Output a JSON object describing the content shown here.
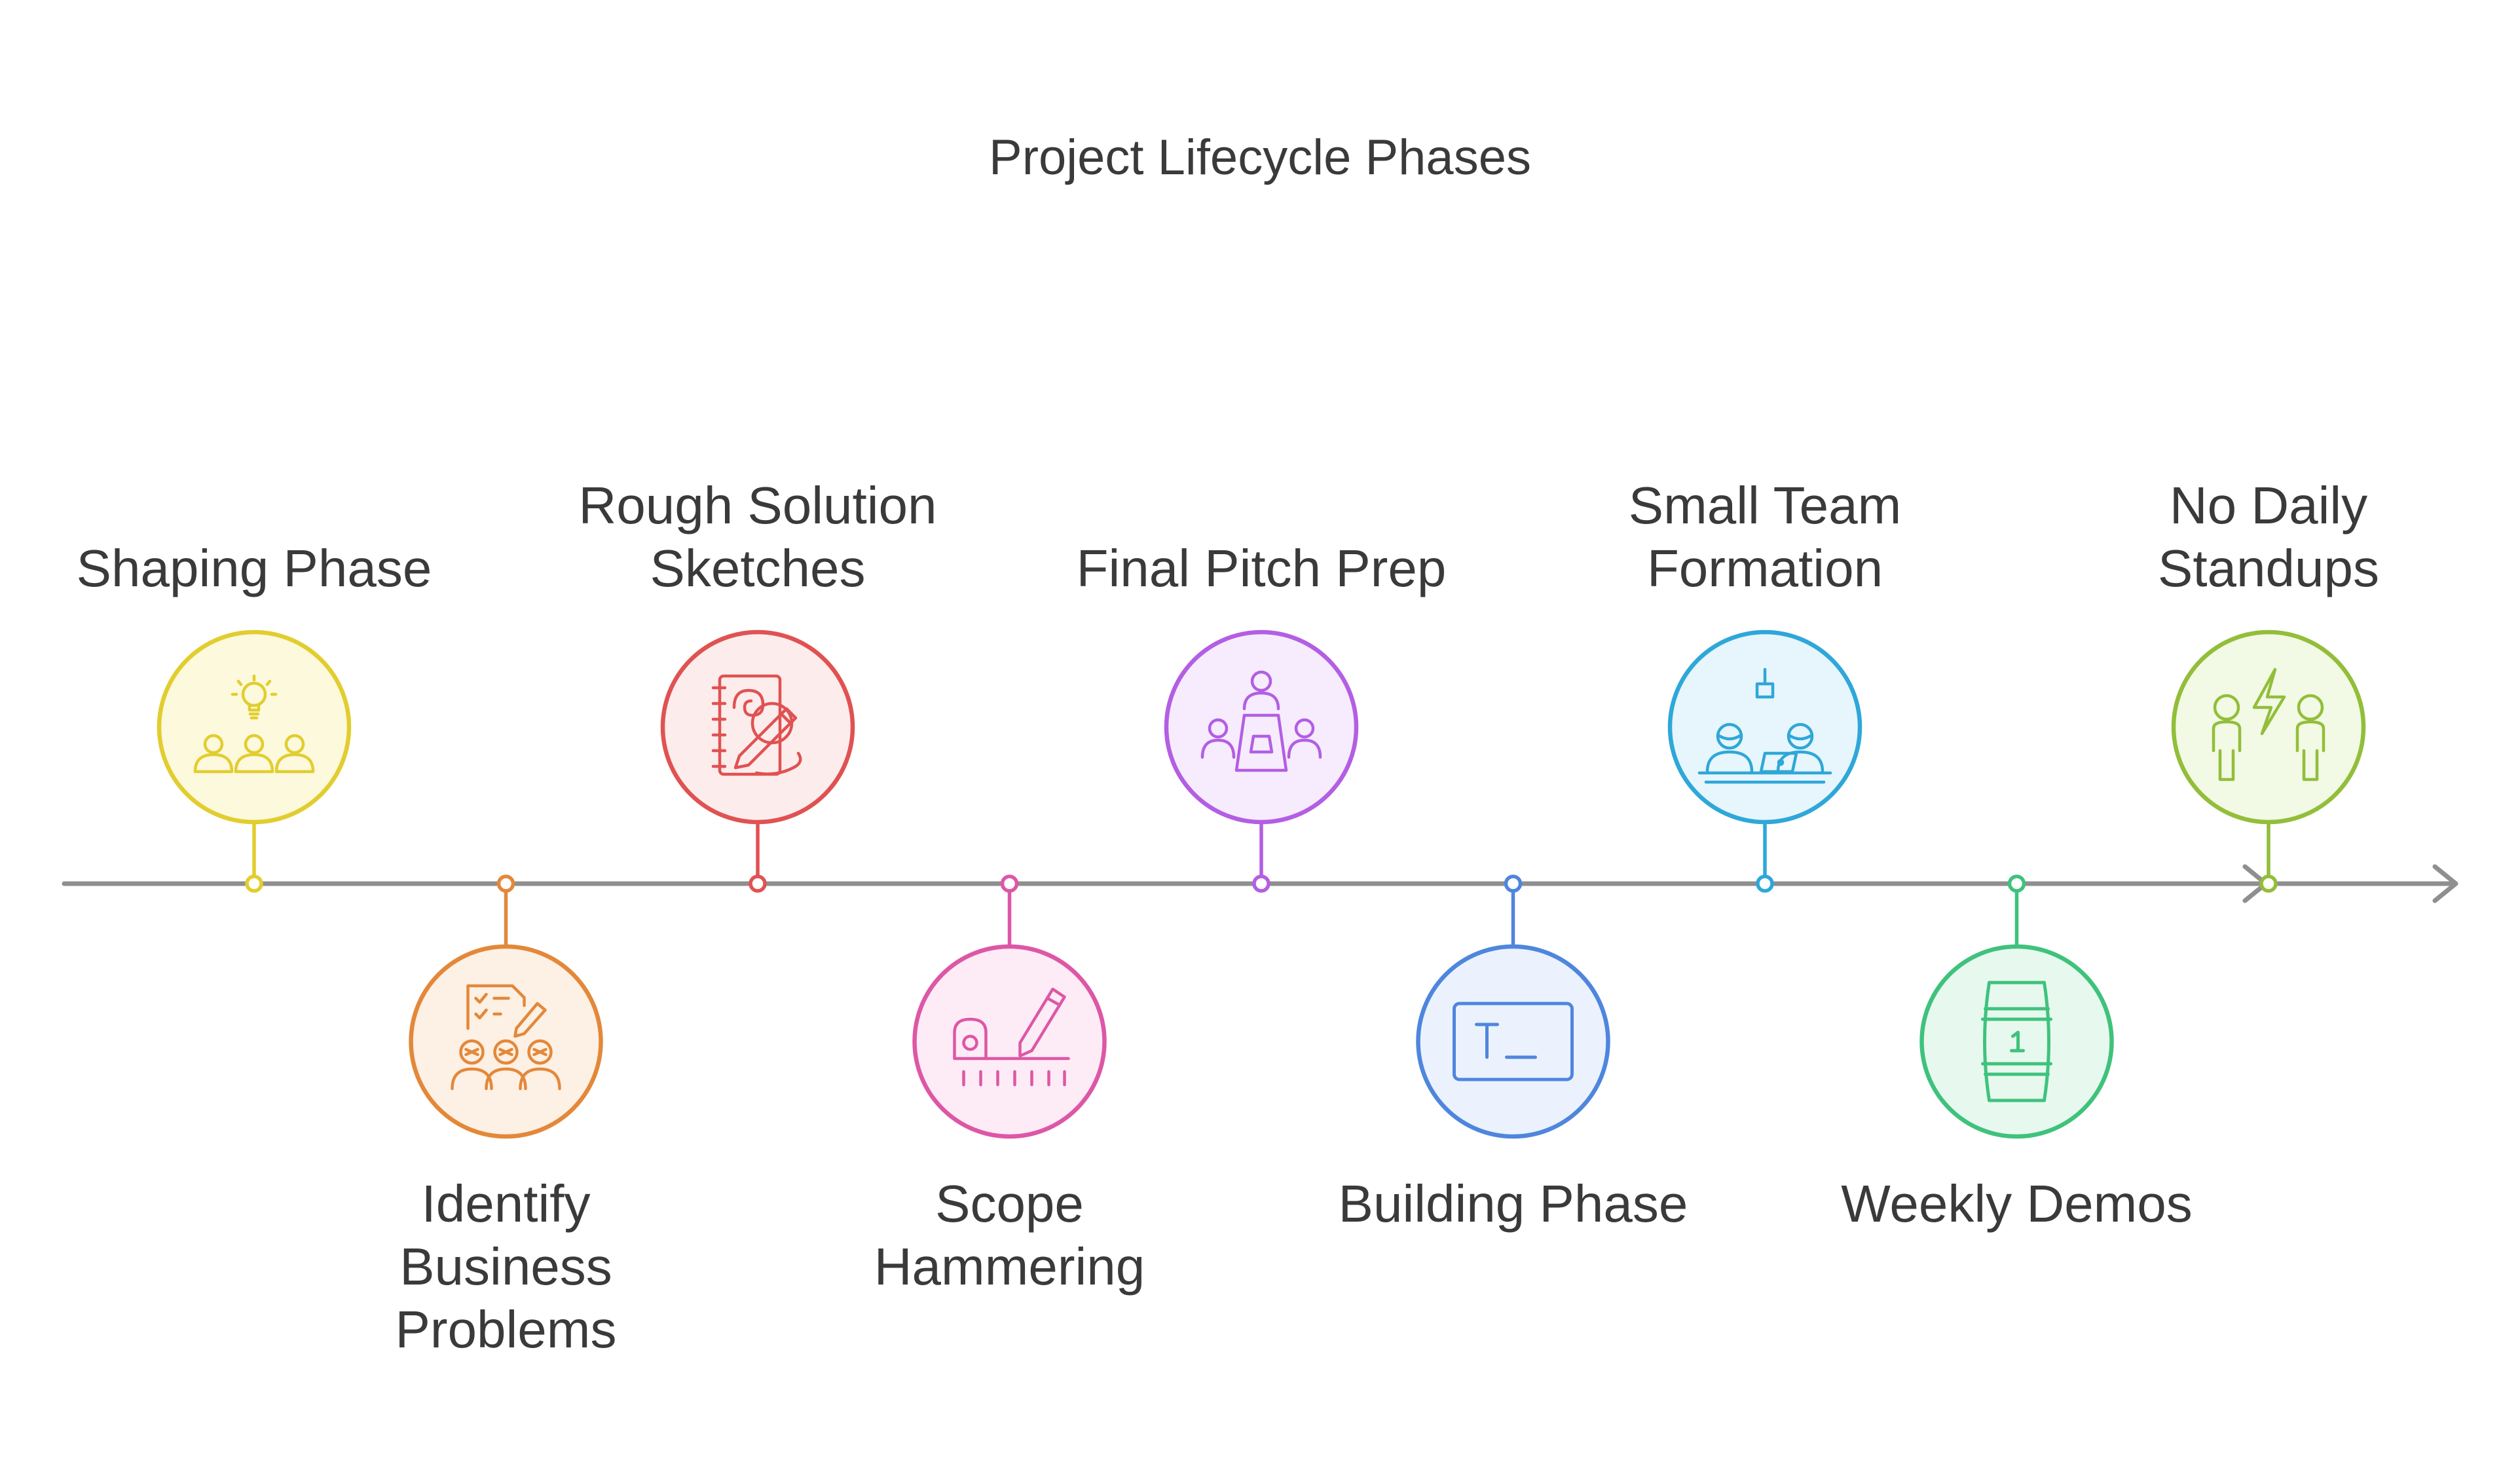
{
  "title": "Project Lifecycle Phases",
  "axis_color": "#8f8f8f",
  "phases": [
    {
      "name": "shaping-phase",
      "label_lines": [
        "Shaping Phase"
      ],
      "position": "above",
      "color": "#e2cd2f",
      "fill": "#fcf9dc",
      "icon": "lightbulb-team-icon"
    },
    {
      "name": "identify-business-problems",
      "label_lines": [
        "Identify",
        "Business",
        "Problems"
      ],
      "position": "below",
      "color": "#e3883a",
      "fill": "#fdf0e4",
      "icon": "checklist-team-icon"
    },
    {
      "name": "rough-solution-sketches",
      "label_lines": [
        "Rough Solution",
        "Sketches"
      ],
      "position": "above",
      "color": "#e05252",
      "fill": "#fdecec",
      "icon": "sketchbook-pen-icon"
    },
    {
      "name": "scope-hammering",
      "label_lines": [
        "Scope",
        "Hammering"
      ],
      "position": "below",
      "color": "#dd57a6",
      "fill": "#fdebf5",
      "icon": "tape-measure-pencil-icon"
    },
    {
      "name": "final-pitch-prep",
      "label_lines": [
        "Final Pitch Prep"
      ],
      "position": "above",
      "color": "#b35ee3",
      "fill": "#f6ecfd",
      "icon": "meeting-table-icon"
    },
    {
      "name": "building-phase",
      "label_lines": [
        "Building Phase"
      ],
      "position": "below",
      "color": "#4f86dd",
      "fill": "#ebf2fd",
      "icon": "terminal-icon"
    },
    {
      "name": "small-team-formation",
      "label_lines": [
        "Small Team",
        "Formation"
      ],
      "position": "above",
      "color": "#2fa7d8",
      "fill": "#e6f6fc",
      "icon": "team-desk-icon"
    },
    {
      "name": "weekly-demos",
      "label_lines": [
        "Weekly Demos"
      ],
      "position": "below",
      "color": "#3fc27c",
      "fill": "#e7f9ef",
      "icon": "barrel-icon"
    },
    {
      "name": "no-daily-standups",
      "label_lines": [
        "No Daily",
        "Standups"
      ],
      "position": "above",
      "color": "#92be3a",
      "fill": "#f2f9e4",
      "icon": "two-people-lightning-icon"
    }
  ]
}
